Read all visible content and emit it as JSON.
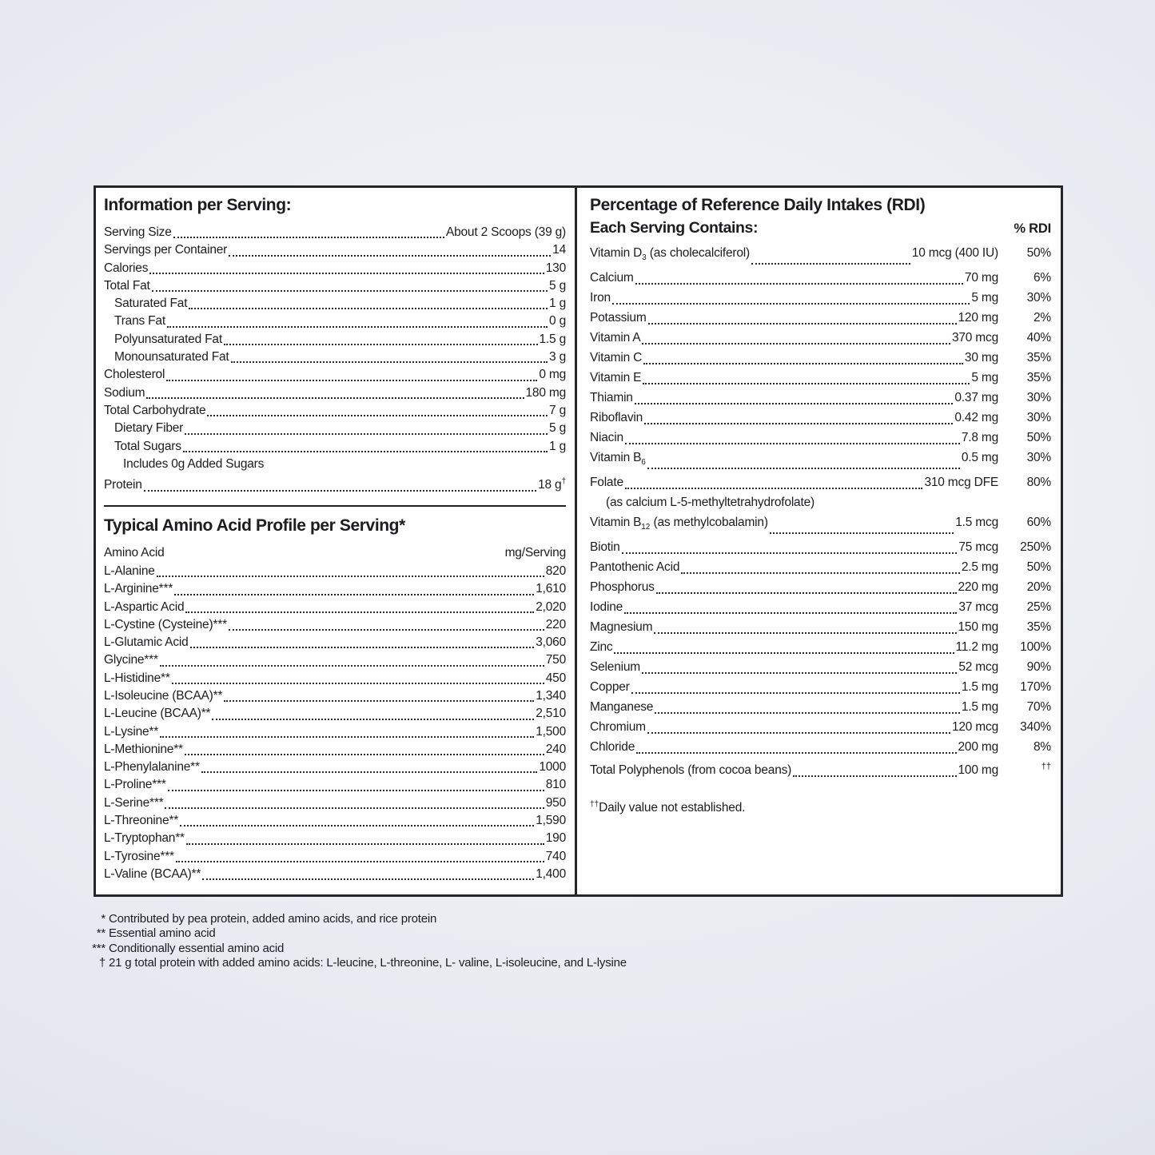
{
  "colors": {
    "text": "#1d1d1f",
    "border": "#26262a",
    "panel_bg": "#fefefe",
    "page_bg_center": "#f5f7f9",
    "page_bg_edge": "#dde1e9"
  },
  "left": {
    "info": {
      "title": "Information per Serving:",
      "rows": [
        {
          "label": "Serving Size",
          "value": "About 2 Scoops (39 g)",
          "indent": 0
        },
        {
          "label": "Servings per Container",
          "value": "14",
          "indent": 0
        },
        {
          "label": "Calories",
          "value": "130",
          "indent": 0
        },
        {
          "label": "Total Fat",
          "value": "5 g",
          "indent": 0
        },
        {
          "label": "Saturated Fat",
          "value": "1 g",
          "indent": 1
        },
        {
          "label": "Trans Fat",
          "value": "0 g",
          "indent": 1
        },
        {
          "label": "Polyunsaturated Fat",
          "value": "1.5 g",
          "indent": 1
        },
        {
          "label": "Monounsaturated Fat",
          "value": "3 g",
          "indent": 1
        },
        {
          "label": "Cholesterol",
          "value": "0 mg",
          "indent": 0
        },
        {
          "label": "Sodium",
          "value": "180 mg",
          "indent": 0
        },
        {
          "label": "Total Carbohydrate",
          "value": "7 g",
          "indent": 0
        },
        {
          "label": "Dietary Fiber",
          "value": "5 g",
          "indent": 1
        },
        {
          "label": "Total Sugars",
          "value": "1 g",
          "indent": 1
        },
        {
          "label": "Includes 0g Added Sugars",
          "indent": 2,
          "plain": true
        },
        {
          "label": "Protein",
          "value": "18 g",
          "value_sup": "†",
          "indent": 0
        }
      ]
    },
    "amino": {
      "title": "Typical Amino Acid Profile per Serving*",
      "col_label": "Amino Acid",
      "col_value": "mg/Serving",
      "rows": [
        {
          "label": "L-Alanine",
          "value": "820"
        },
        {
          "label": "L-Arginine***",
          "value": "1,610"
        },
        {
          "label": "L-Aspartic Acid",
          "value": "2,020"
        },
        {
          "label": "L-Cystine (Cysteine)***",
          "value": "220"
        },
        {
          "label": "L-Glutamic Acid",
          "value": "3,060"
        },
        {
          "label": "Glycine***",
          "value": "750"
        },
        {
          "label": "L-Histidine**",
          "value": "450"
        },
        {
          "label": "L-Isoleucine (BCAA)**",
          "value": "1,340"
        },
        {
          "label": "L-Leucine (BCAA)**",
          "value": "2,510"
        },
        {
          "label": "L-Lysine**",
          "value": "1,500"
        },
        {
          "label": "L-Methionine**",
          "value": "240"
        },
        {
          "label": "L-Phenylalanine**",
          "value": "1000"
        },
        {
          "label": "L-Proline***",
          "value": "810"
        },
        {
          "label": "L-Serine***",
          "value": "950"
        },
        {
          "label": "L-Threonine**",
          "value": "1,590"
        },
        {
          "label": "L-Tryptophan**",
          "value": "190"
        },
        {
          "label": "L-Tyrosine***",
          "value": "740"
        },
        {
          "label": "L-Valine (BCAA)**",
          "value": "1,400"
        }
      ]
    }
  },
  "right": {
    "title": "Percentage of Reference Daily Intakes (RDI)",
    "subtitle": "Each Serving Contains:",
    "rdi_header": "% RDI",
    "rows": [
      {
        "label": "Vitamin D",
        "sub": "3",
        "label2": " (as cholecalciferol) ",
        "value": "10 mcg (400 IU)",
        "pct": "50%"
      },
      {
        "label": "Calcium",
        "value": "70 mg",
        "pct": "6%"
      },
      {
        "label": "Iron",
        "value": "5 mg",
        "pct": "30%"
      },
      {
        "label": "Potassium",
        "value": "120 mg",
        "pct": "2%"
      },
      {
        "label": "Vitamin A",
        "value": "370 mcg",
        "pct": "40%"
      },
      {
        "label": "Vitamin C",
        "value": "30 mg",
        "pct": "35%"
      },
      {
        "label": "Vitamin E",
        "value": "5 mg",
        "pct": "35%"
      },
      {
        "label": "Thiamin",
        "value": "0.37 mg",
        "pct": "30%"
      },
      {
        "label": "Riboflavin",
        "value": "0.42 mg",
        "pct": "30%"
      },
      {
        "label": "Niacin",
        "value": "7.8 mg",
        "pct": "50%"
      },
      {
        "label": "Vitamin B",
        "sub": "6",
        "label2": " ",
        "value": "0.5 mg",
        "pct": "30%"
      },
      {
        "label": "Folate",
        "value": "310 mcg DFE",
        "pct": "80%"
      },
      {
        "plain": "(as calcium L-5-methyltetrahydrofolate)"
      },
      {
        "label": "Vitamin B",
        "sub": "12",
        "label2": " (as methylcobalamin)",
        "value": "1.5 mcg",
        "pct": "60%"
      },
      {
        "label": "Biotin",
        "value": "75 mcg",
        "pct": "250%"
      },
      {
        "label": "Pantothenic Acid",
        "value": "2.5 mg",
        "pct": "50%"
      },
      {
        "label": "Phosphorus",
        "value": "220 mg",
        "pct": "20%"
      },
      {
        "label": "Iodine",
        "value": "37 mcg",
        "pct": "25%"
      },
      {
        "label": "Magnesium",
        "value": "150 mg",
        "pct": "35%"
      },
      {
        "label": "Zinc",
        "value": "11.2 mg",
        "pct": "100%"
      },
      {
        "label": "Selenium",
        "value": "52 mcg",
        "pct": "90%"
      },
      {
        "label": "Copper",
        "value": "1.5 mg",
        "pct": "170%"
      },
      {
        "label": "Manganese",
        "value": "1.5 mg",
        "pct": "70%"
      },
      {
        "label": "Chromium",
        "value": "120 mcg",
        "pct": "340%"
      },
      {
        "label": "Chloride",
        "value": "200 mg",
        "pct": "8%"
      },
      {
        "label": "Total Polyphenols (from cocoa beans)",
        "value": "100 mg",
        "pct": "††",
        "pct_sup": true
      }
    ],
    "dv_note": {
      "sup": "††",
      "text": "Daily value not established."
    }
  },
  "footnotes": [
    {
      "marker": "*",
      "text": "Contributed by pea protein, added amino acids, and rice protein"
    },
    {
      "marker": "**",
      "text": "Essential amino acid"
    },
    {
      "marker": "***",
      "text": "Conditionally essential amino acid"
    },
    {
      "marker": "†",
      "text": "21 g total protein with added amino acids: L-leucine, L-threonine, L- valine, L-isoleucine, and L-lysine"
    }
  ]
}
